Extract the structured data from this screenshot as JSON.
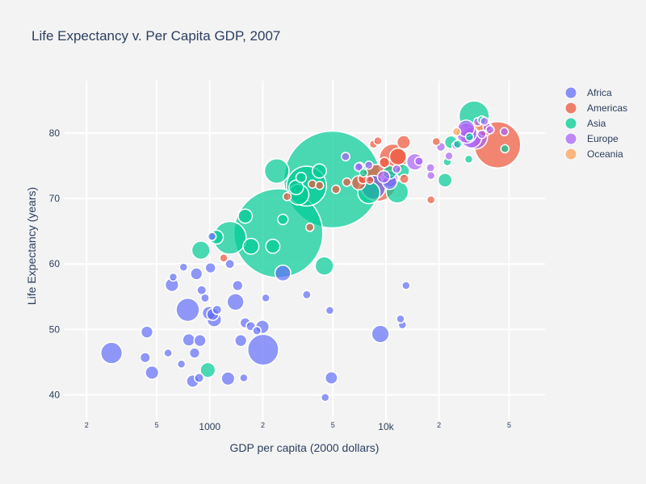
{
  "chart_data": {
    "type": "scatter",
    "title": "Life Expectancy v. Per Capita GDP, 2007",
    "xlabel": "GDP per capita (2000 dollars)",
    "ylabel": "Life Expectancy (years)",
    "x_scale": "log",
    "xlim": [
      150,
      80000
    ],
    "ylim": [
      36,
      88
    ],
    "grid": true,
    "legend_position": "top-right",
    "x_ticks_major": [
      {
        "value": 1000,
        "label": "1000"
      },
      {
        "value": 10000,
        "label": "10k"
      }
    ],
    "x_ticks_minor": [
      {
        "value": 200,
        "label": "2"
      },
      {
        "value": 500,
        "label": "5"
      },
      {
        "value": 2000,
        "label": "2"
      },
      {
        "value": 5000,
        "label": "5"
      },
      {
        "value": 20000,
        "label": "2"
      },
      {
        "value": 50000,
        "label": "5"
      }
    ],
    "y_ticks": [
      {
        "value": 40,
        "label": "40"
      },
      {
        "value": 50,
        "label": "50"
      },
      {
        "value": 60,
        "label": "60"
      },
      {
        "value": 70,
        "label": "70"
      },
      {
        "value": 80,
        "label": "80"
      }
    ],
    "series": [
      {
        "name": "Africa",
        "color": "#636efa",
        "points": [
          {
            "x": 277,
            "y": 46.4,
            "pop": 64606759
          },
          {
            "x": 430,
            "y": 45.7,
            "pop": 14326203
          },
          {
            "x": 440,
            "y": 49.6,
            "pop": 20000000
          },
          {
            "x": 470,
            "y": 43.4,
            "pop": 25000000
          },
          {
            "x": 580,
            "y": 46.4,
            "pop": 8000000
          },
          {
            "x": 610,
            "y": 56.8,
            "pop": 25000000
          },
          {
            "x": 620,
            "y": 58.0,
            "pop": 8000000
          },
          {
            "x": 690,
            "y": 44.7,
            "pop": 9000000
          },
          {
            "x": 710,
            "y": 59.5,
            "pop": 6000000
          },
          {
            "x": 750,
            "y": 53.0,
            "pop": 76000000
          },
          {
            "x": 760,
            "y": 48.4,
            "pop": 22000000
          },
          {
            "x": 800,
            "y": 42.1,
            "pop": 22000000
          },
          {
            "x": 820,
            "y": 46.4,
            "pop": 15000000
          },
          {
            "x": 840,
            "y": 58.5,
            "pop": 20000000
          },
          {
            "x": 870,
            "y": 42.6,
            "pop": 12000000
          },
          {
            "x": 880,
            "y": 48.3,
            "pop": 20000000
          },
          {
            "x": 900,
            "y": 56.0,
            "pop": 12000000
          },
          {
            "x": 940,
            "y": 54.8,
            "pop": 10000000
          },
          {
            "x": 990,
            "y": 52.5,
            "pop": 25000000
          },
          {
            "x": 1010,
            "y": 59.4,
            "pop": 15000000
          },
          {
            "x": 1030,
            "y": 64.2,
            "pop": 3000000
          },
          {
            "x": 1040,
            "y": 52.3,
            "pop": 20000000
          },
          {
            "x": 1060,
            "y": 51.5,
            "pop": 30000000
          },
          {
            "x": 1100,
            "y": 53.0,
            "pop": 12000000
          },
          {
            "x": 1270,
            "y": 42.5,
            "pop": 25000000
          },
          {
            "x": 1300,
            "y": 60.0,
            "pop": 12000000
          },
          {
            "x": 1400,
            "y": 54.2,
            "pop": 40000000
          },
          {
            "x": 1440,
            "y": 56.7,
            "pop": 15000000
          },
          {
            "x": 1500,
            "y": 48.3,
            "pop": 20000000
          },
          {
            "x": 1560,
            "y": 42.6,
            "pop": 5000000
          },
          {
            "x": 1590,
            "y": 51.0,
            "pop": 15000000
          },
          {
            "x": 1710,
            "y": 50.5,
            "pop": 12000000
          },
          {
            "x": 1850,
            "y": 49.8,
            "pop": 10000000
          },
          {
            "x": 1990,
            "y": 50.4,
            "pop": 25000000
          },
          {
            "x": 2010,
            "y": 46.9,
            "pop": 135031164
          },
          {
            "x": 2080,
            "y": 54.8,
            "pop": 3000000
          },
          {
            "x": 2600,
            "y": 58.6,
            "pop": 35000000
          },
          {
            "x": 3550,
            "y": 55.3,
            "pop": 10000000
          },
          {
            "x": 4520,
            "y": 39.6,
            "pop": 5000000
          },
          {
            "x": 4800,
            "y": 52.9,
            "pop": 7000000
          },
          {
            "x": 4900,
            "y": 42.6,
            "pop": 22000000
          },
          {
            "x": 9300,
            "y": 49.3,
            "pop": 43000000
          },
          {
            "x": 12100,
            "y": 51.6,
            "pop": 3000000
          },
          {
            "x": 12400,
            "y": 50.7,
            "pop": 5000000
          },
          {
            "x": 13000,
            "y": 56.7,
            "pop": 6000000
          },
          {
            "x": 8500,
            "y": 71.7,
            "pop": 80000000
          },
          {
            "x": 10500,
            "y": 72.5,
            "pop": 30000000
          },
          {
            "x": 7100,
            "y": 74.9,
            "pop": 10000000
          }
        ]
      },
      {
        "name": "Americas",
        "color": "#ef553b",
        "points": [
          {
            "x": 1200,
            "y": 60.9,
            "pop": 8500000
          },
          {
            "x": 3700,
            "y": 65.6,
            "pop": 6000000
          },
          {
            "x": 2749,
            "y": 70.3,
            "pop": 6000000
          },
          {
            "x": 3820,
            "y": 72.2,
            "pop": 6000000
          },
          {
            "x": 4200,
            "y": 72.0,
            "pop": 6000000
          },
          {
            "x": 5200,
            "y": 71.4,
            "pop": 10000000
          },
          {
            "x": 6000,
            "y": 72.5,
            "pop": 10000000
          },
          {
            "x": 7000,
            "y": 72.4,
            "pop": 28000000
          },
          {
            "x": 7400,
            "y": 73.0,
            "pop": 13000000
          },
          {
            "x": 8100,
            "y": 72.8,
            "pop": 9000000
          },
          {
            "x": 8500,
            "y": 78.3,
            "pop": 8000000
          },
          {
            "x": 9000,
            "y": 72.4,
            "pop": 190010647
          },
          {
            "x": 9000,
            "y": 78.8,
            "pop": 3000000
          },
          {
            "x": 9800,
            "y": 75.5,
            "pop": 15000000
          },
          {
            "x": 11000,
            "y": 76.2,
            "pop": 108700891
          },
          {
            "x": 11700,
            "y": 76.4,
            "pop": 40000000
          },
          {
            "x": 12600,
            "y": 78.6,
            "pop": 25000000
          },
          {
            "x": 12700,
            "y": 73.0,
            "pop": 12000000
          },
          {
            "x": 18000,
            "y": 69.8,
            "pop": 1000000
          },
          {
            "x": 19300,
            "y": 78.7,
            "pop": 4000000
          },
          {
            "x": 36300,
            "y": 80.7,
            "pop": 33390141
          },
          {
            "x": 42950,
            "y": 78.2,
            "pop": 301139947
          }
        ]
      },
      {
        "name": "Asia",
        "color": "#00cc96",
        "points": [
          {
            "x": 975,
            "y": 43.8,
            "pop": 31889923
          },
          {
            "x": 890,
            "y": 62.1,
            "pop": 47000000
          },
          {
            "x": 1090,
            "y": 64.1,
            "pop": 27000000
          },
          {
            "x": 1300,
            "y": 64.0,
            "pop": 150448339
          },
          {
            "x": 1590,
            "y": 67.3,
            "pop": 28000000
          },
          {
            "x": 1713,
            "y": 62.7,
            "pop": 35000000
          },
          {
            "x": 2450,
            "y": 64.7,
            "pop": 1110396331
          },
          {
            "x": 2280,
            "y": 62.7,
            "pop": 28000000
          },
          {
            "x": 2400,
            "y": 74.2,
            "pop": 85000000
          },
          {
            "x": 2600,
            "y": 66.8,
            "pop": 15000000
          },
          {
            "x": 3095,
            "y": 71.7,
            "pop": 30000000
          },
          {
            "x": 3190,
            "y": 70.6,
            "pop": 60000000
          },
          {
            "x": 3300,
            "y": 73.2,
            "pop": 15000000
          },
          {
            "x": 3540,
            "y": 71.9,
            "pop": 223547000
          },
          {
            "x": 4470,
            "y": 59.7,
            "pop": 48000000
          },
          {
            "x": 4960,
            "y": 72.9,
            "pop": 1318683096
          },
          {
            "x": 4190,
            "y": 74.2,
            "pop": 28000000
          },
          {
            "x": 7460,
            "y": 73.9,
            "pop": 5000000
          },
          {
            "x": 8000,
            "y": 70.9,
            "pop": 69000000
          },
          {
            "x": 11600,
            "y": 71.0,
            "pop": 69000000
          },
          {
            "x": 10500,
            "y": 74.0,
            "pop": 25000000
          },
          {
            "x": 12450,
            "y": 74.2,
            "pop": 25000000
          },
          {
            "x": 21650,
            "y": 72.8,
            "pop": 27000000
          },
          {
            "x": 22300,
            "y": 75.6,
            "pop": 2000000
          },
          {
            "x": 23400,
            "y": 78.6,
            "pop": 23000000
          },
          {
            "x": 29800,
            "y": 79.4,
            "pop": 6980412
          },
          {
            "x": 31650,
            "y": 82.6,
            "pop": 127467972
          },
          {
            "x": 25500,
            "y": 78.3,
            "pop": 2000000
          },
          {
            "x": 29500,
            "y": 76.0,
            "pop": 1000000
          },
          {
            "x": 47300,
            "y": 77.6,
            "pop": 4500000
          },
          {
            "x": 35000,
            "y": 82.0,
            "pop": 7000000
          }
        ]
      },
      {
        "name": "Europe",
        "color": "#ab63fa",
        "points": [
          {
            "x": 5900,
            "y": 76.4,
            "pop": 10000000
          },
          {
            "x": 7000,
            "y": 74.8,
            "pop": 10000000
          },
          {
            "x": 8000,
            "y": 75.1,
            "pop": 9000000
          },
          {
            "x": 9700,
            "y": 73.3,
            "pop": 22000000
          },
          {
            "x": 10500,
            "y": 73.0,
            "pop": 38000000
          },
          {
            "x": 11500,
            "y": 74.5,
            "pop": 10000000
          },
          {
            "x": 14600,
            "y": 75.6,
            "pop": 38000000
          },
          {
            "x": 15400,
            "y": 75.7,
            "pop": 10000000
          },
          {
            "x": 17900,
            "y": 74.7,
            "pop": 10000000
          },
          {
            "x": 18000,
            "y": 73.5,
            "pop": 5000000
          },
          {
            "x": 20500,
            "y": 77.9,
            "pop": 11000000
          },
          {
            "x": 22800,
            "y": 76.5,
            "pop": 2000000
          },
          {
            "x": 25000,
            "y": 78.1,
            "pop": 10000000
          },
          {
            "x": 28500,
            "y": 80.7,
            "pop": 40000000
          },
          {
            "x": 28700,
            "y": 80.0,
            "pop": 58000000
          },
          {
            "x": 30500,
            "y": 79.3,
            "pop": 61000000
          },
          {
            "x": 32200,
            "y": 79.4,
            "pop": 82400996
          },
          {
            "x": 33200,
            "y": 81.7,
            "pop": 10000000
          },
          {
            "x": 35000,
            "y": 79.8,
            "pop": 10000000
          },
          {
            "x": 36200,
            "y": 81.8,
            "pop": 4500000
          },
          {
            "x": 37500,
            "y": 80.9,
            "pop": 7500000
          },
          {
            "x": 39000,
            "y": 80.5,
            "pop": 5500000
          },
          {
            "x": 47000,
            "y": 80.2,
            "pop": 4600000
          }
        ]
      },
      {
        "name": "Oceania",
        "color": "#ffa15a",
        "points": [
          {
            "x": 25185,
            "y": 80.2,
            "pop": 4115771
          },
          {
            "x": 34435,
            "y": 81.2,
            "pop": 20434176
          }
        ]
      }
    ]
  }
}
